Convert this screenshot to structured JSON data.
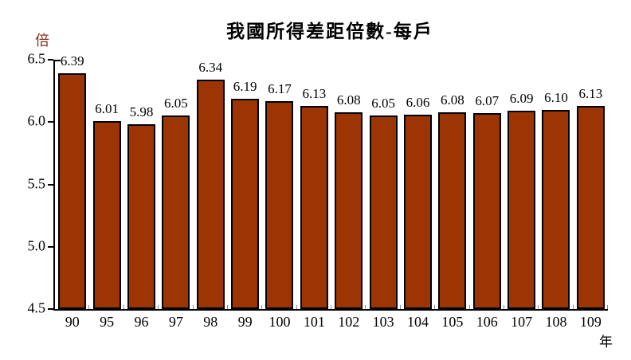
{
  "title": "我國所得差距倍數-每戶",
  "colors": {
    "bar_fill": "#9C3503",
    "bar_border": "#000000",
    "axis": "#000000",
    "y_unit_label": "#7F3320",
    "boundary_tick": "#8A8A8A",
    "background": "#FFFFFF"
  },
  "chart_data": {
    "type": "bar",
    "title": "我國所得差距倍數-每戶",
    "xlabel": "年",
    "ylabel": "倍",
    "categories": [
      "90",
      "95",
      "96",
      "97",
      "98",
      "99",
      "100",
      "101",
      "102",
      "103",
      "104",
      "105",
      "106",
      "107",
      "108",
      "109"
    ],
    "values": [
      6.39,
      6.01,
      5.98,
      6.05,
      6.34,
      6.19,
      6.17,
      6.13,
      6.08,
      6.05,
      6.06,
      6.08,
      6.07,
      6.09,
      6.1,
      6.13
    ],
    "value_labels": [
      "6.39",
      "6.01",
      "5.98",
      "6.05",
      "6.34",
      "6.19",
      "6.17",
      "6.13",
      "6.08",
      "6.05",
      "6.06",
      "6.08",
      "6.07",
      "6.09",
      "6.10",
      "6.13"
    ],
    "ylim": [
      4.5,
      6.5
    ],
    "y_ticks": [
      "6.5",
      "6.0",
      "5.5",
      "5.0",
      "4.5"
    ],
    "grid": false,
    "legend": false
  }
}
